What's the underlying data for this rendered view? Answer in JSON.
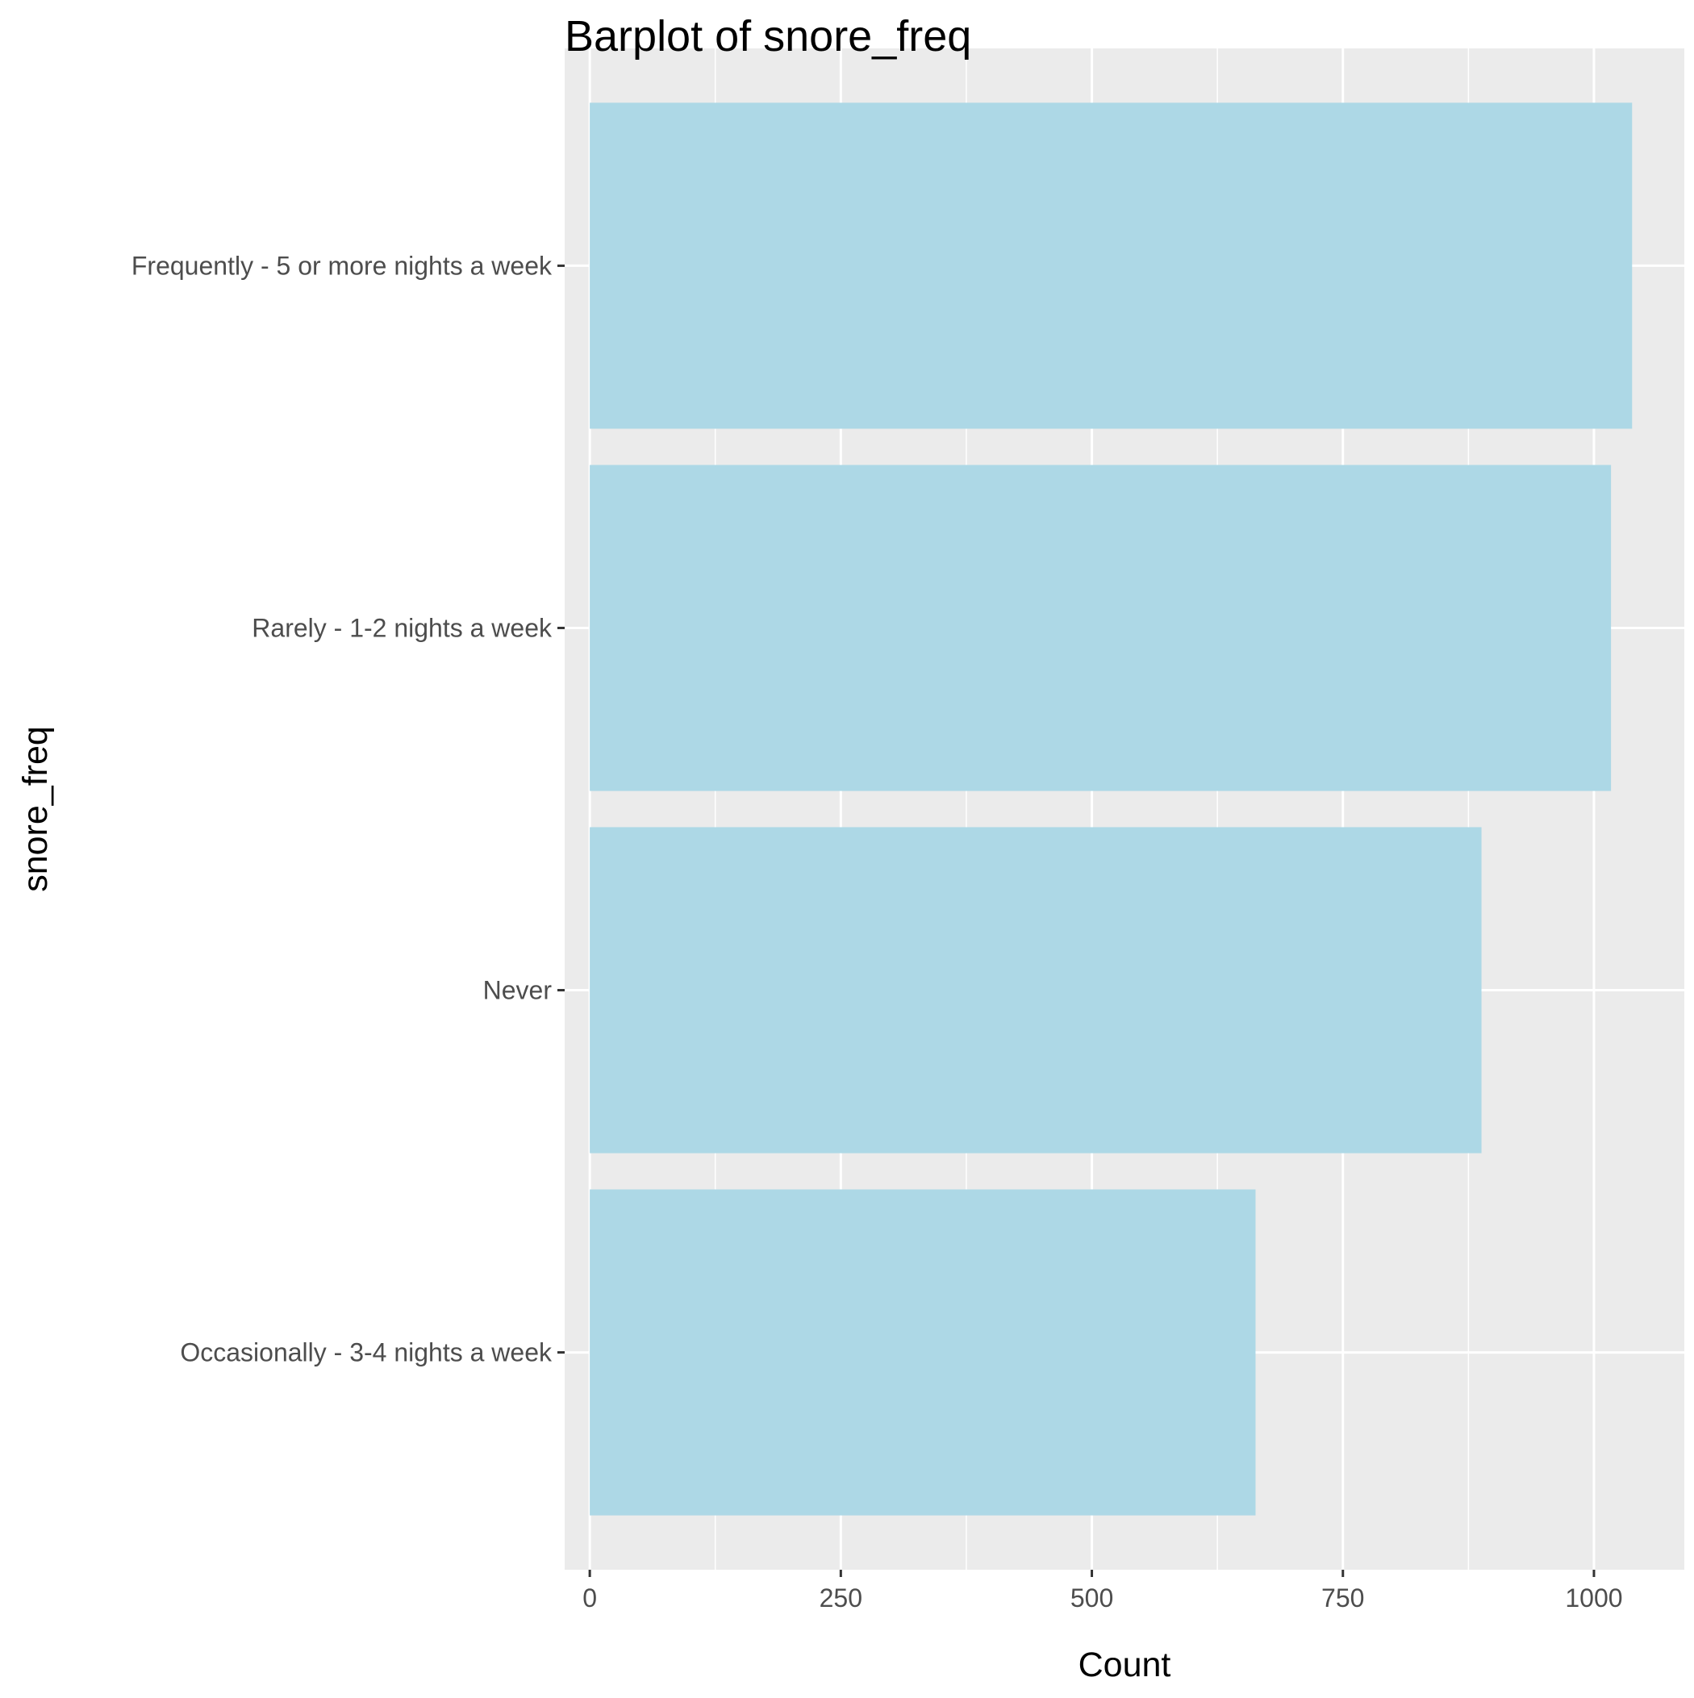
{
  "chart_data": {
    "type": "bar",
    "orientation": "horizontal",
    "title": "Barplot of snore_freq",
    "xlabel": "Count",
    "ylabel": "snore_freq",
    "categories": [
      "Frequently - 5 or more nights a week",
      "Rarely - 1-2 nights a week",
      "Never",
      "Occasionally - 3-4 nights a week"
    ],
    "values": [
      1038,
      1017,
      888,
      663
    ],
    "xlim": [
      -25,
      1090
    ],
    "xticks": [
      0,
      250,
      500,
      750,
      1000
    ],
    "grid": true,
    "legend": "none",
    "colors": {
      "bar": "#ADD8E6",
      "panel": "#EBEBEB",
      "grid": "#FFFFFF",
      "axis_text": "#4D4D4D",
      "title_text": "#000000"
    }
  }
}
